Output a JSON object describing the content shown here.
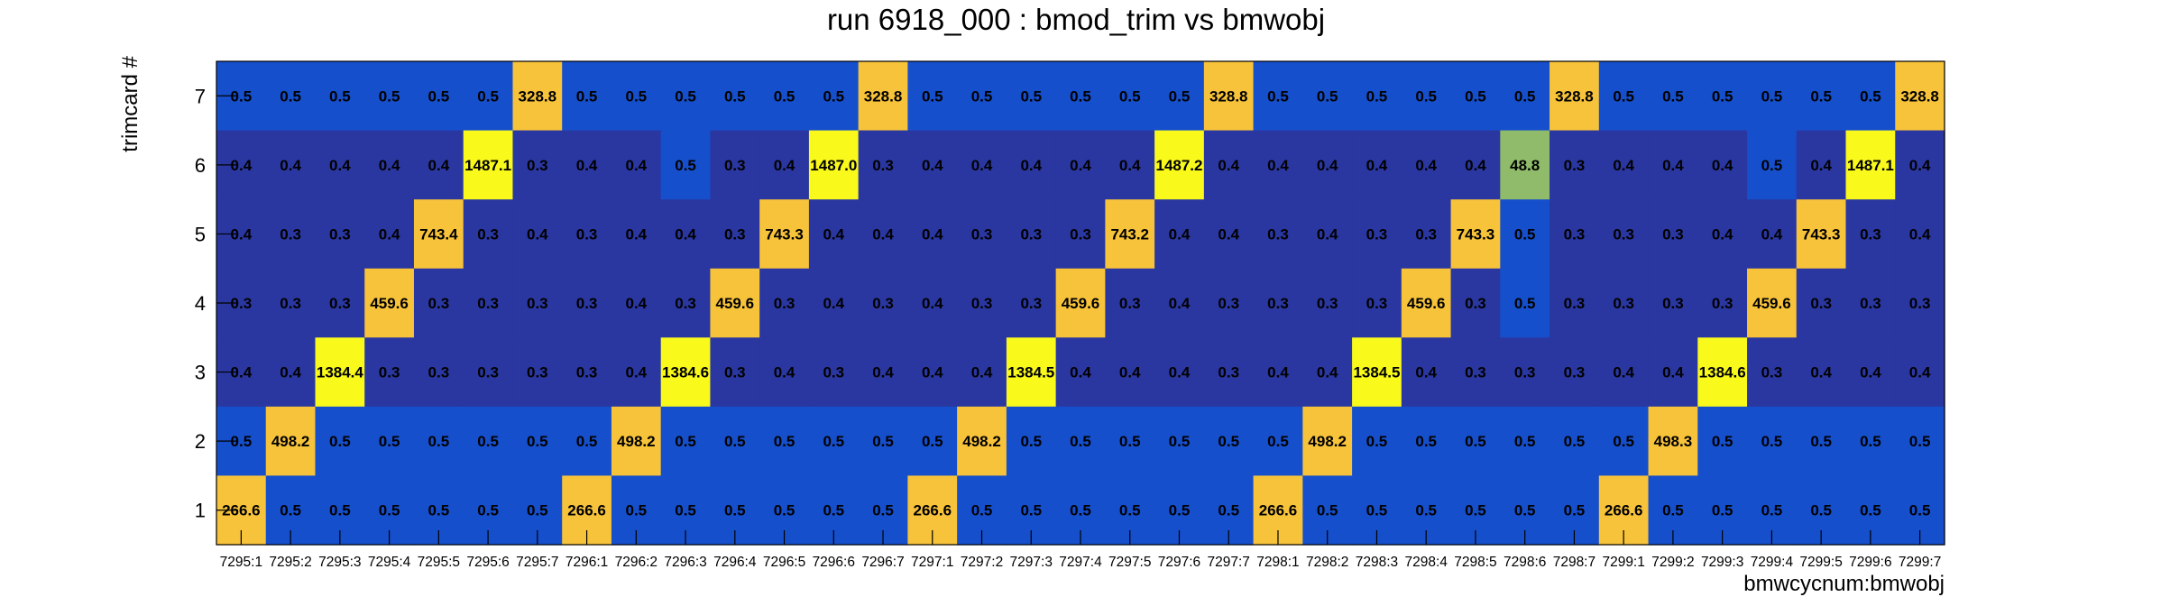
{
  "chart_data": {
    "type": "heatmap",
    "title": "run 6918_000 : bmod_trim vs bmwobj",
    "xlabel": "bmwcycnum:bmwobj",
    "ylabel": "trimcard #",
    "x_categories": [
      "7295:1",
      "7295:2",
      "7295:3",
      "7295:4",
      "7295:5",
      "7295:6",
      "7295:7",
      "7296:1",
      "7296:2",
      "7296:3",
      "7296:4",
      "7296:5",
      "7296:6",
      "7296:7",
      "7297:1",
      "7297:2",
      "7297:3",
      "7297:4",
      "7297:5",
      "7297:6",
      "7297:7",
      "7298:1",
      "7298:2",
      "7298:3",
      "7298:4",
      "7298:5",
      "7298:6",
      "7298:7",
      "7299:1",
      "7299:2",
      "7299:3",
      "7299:4",
      "7299:5",
      "7299:6",
      "7299:7"
    ],
    "y_categories": [
      "1",
      "2",
      "3",
      "4",
      "5",
      "6",
      "7"
    ],
    "rows": [
      {
        "y": "7",
        "values": [
          0.5,
          0.5,
          0.5,
          0.5,
          0.5,
          0.5,
          328.8,
          0.5,
          0.5,
          0.5,
          0.5,
          0.5,
          0.5,
          328.8,
          0.5,
          0.5,
          0.5,
          0.5,
          0.5,
          0.5,
          328.8,
          0.5,
          0.5,
          0.5,
          0.5,
          0.5,
          0.5,
          328.8,
          0.5,
          0.5,
          0.5,
          0.5,
          0.5,
          0.5,
          328.8
        ]
      },
      {
        "y": "6",
        "values": [
          0.4,
          0.4,
          0.4,
          0.4,
          0.4,
          1487.1,
          0.3,
          0.4,
          0.4,
          0.5,
          0.3,
          0.4,
          1487.0,
          0.3,
          0.4,
          0.4,
          0.4,
          0.4,
          0.4,
          1487.2,
          0.4,
          0.4,
          0.4,
          0.4,
          0.4,
          0.4,
          48.8,
          0.3,
          0.4,
          0.4,
          0.4,
          0.5,
          0.4,
          1487.1,
          0.4
        ]
      },
      {
        "y": "5",
        "values": [
          0.4,
          0.3,
          0.3,
          0.4,
          743.4,
          0.3,
          0.4,
          0.3,
          0.4,
          0.4,
          0.3,
          743.3,
          0.4,
          0.4,
          0.4,
          0.3,
          0.3,
          0.3,
          743.2,
          0.4,
          0.4,
          0.3,
          0.4,
          0.3,
          0.3,
          743.3,
          0.5,
          0.3,
          0.3,
          0.3,
          0.4,
          0.4,
          743.3,
          0.3,
          0.4
        ]
      },
      {
        "y": "4",
        "values": [
          0.3,
          0.3,
          0.3,
          459.6,
          0.3,
          0.3,
          0.3,
          0.3,
          0.4,
          0.3,
          459.6,
          0.3,
          0.4,
          0.3,
          0.4,
          0.3,
          0.3,
          459.6,
          0.3,
          0.4,
          0.3,
          0.3,
          0.3,
          0.3,
          459.6,
          0.3,
          0.5,
          0.3,
          0.3,
          0.3,
          0.3,
          459.6,
          0.3,
          0.3,
          0.3
        ]
      },
      {
        "y": "3",
        "values": [
          0.4,
          0.4,
          1384.4,
          0.3,
          0.3,
          0.3,
          0.3,
          0.3,
          0.4,
          1384.6,
          0.3,
          0.4,
          0.3,
          0.4,
          0.4,
          0.4,
          1384.5,
          0.4,
          0.4,
          0.4,
          0.3,
          0.4,
          0.4,
          1384.5,
          0.4,
          0.3,
          0.3,
          0.3,
          0.4,
          0.4,
          1384.6,
          0.3,
          0.4,
          0.4,
          0.4
        ]
      },
      {
        "y": "2",
        "values": [
          0.5,
          498.2,
          0.5,
          0.5,
          0.5,
          0.5,
          0.5,
          0.5,
          498.2,
          0.5,
          0.5,
          0.5,
          0.5,
          0.5,
          0.5,
          498.2,
          0.5,
          0.5,
          0.5,
          0.5,
          0.5,
          0.5,
          498.2,
          0.5,
          0.5,
          0.5,
          0.5,
          0.5,
          0.5,
          498.3,
          0.5,
          0.5,
          0.5,
          0.5,
          0.5
        ]
      },
      {
        "y": "1",
        "values": [
          266.6,
          0.5,
          0.5,
          0.5,
          0.5,
          0.5,
          0.5,
          266.6,
          0.5,
          0.5,
          0.5,
          0.5,
          0.5,
          0.5,
          266.6,
          0.5,
          0.5,
          0.5,
          0.5,
          0.5,
          0.5,
          266.6,
          0.5,
          0.5,
          0.5,
          0.5,
          0.5,
          0.5,
          266.6,
          0.5,
          0.5,
          0.5,
          0.5,
          0.5,
          0.5
        ]
      }
    ],
    "color_scale": [
      {
        "min": 1000,
        "color": "#f9f91c"
      },
      {
        "min": 200,
        "color": "#f7c33a"
      },
      {
        "min": 20,
        "color": "#8fbb6a"
      },
      {
        "min": 0.45,
        "color": "#164fcc"
      },
      {
        "min": 0,
        "color": "#2a37a0"
      }
    ],
    "grid": false,
    "legend": "none"
  }
}
